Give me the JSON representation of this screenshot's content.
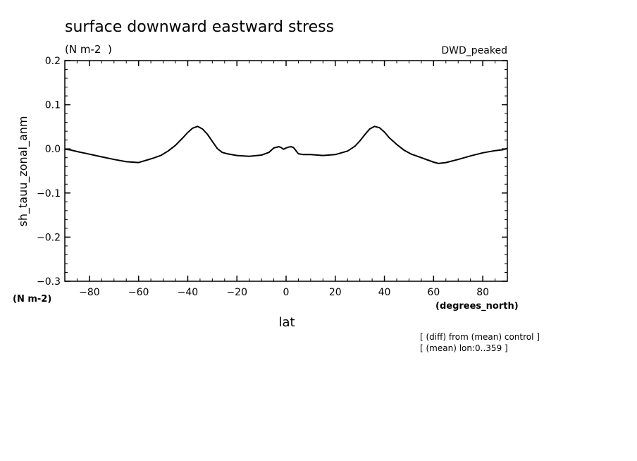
{
  "chart_data": {
    "type": "line",
    "title": "surface downward eastward stress",
    "subtitle": "(N m-2  )",
    "tag": "DWD_peaked",
    "ylabel": "sh_tauu_zonal_anm",
    "yunits": "(N m-2)",
    "xlabel": "lat",
    "xunits": "(degrees_north)",
    "notes": [
      "[ (diff) from (mean) control ]",
      "[ (mean) lon:0..359 ]"
    ],
    "xlim": [
      -90,
      90
    ],
    "ylim": [
      -0.3,
      0.2
    ],
    "xticks": [
      -80,
      -60,
      -40,
      -20,
      0,
      20,
      40,
      60,
      80
    ],
    "xtick_labels": [
      "−80",
      "−60",
      "−40",
      "−20",
      "0",
      "20",
      "40",
      "60",
      "80"
    ],
    "yticks": [
      0.2,
      0.1,
      0.0,
      -0.1,
      -0.2,
      -0.3
    ],
    "ytick_labels": [
      "0.2",
      "0.1",
      "0.0",
      "−0.1",
      "−0.2",
      "−0.3"
    ],
    "grid": false,
    "series": [
      {
        "x": [
          -90,
          -88,
          -85,
          -80,
          -75,
          -70,
          -65,
          -60,
          -57,
          -54,
          -51,
          -48,
          -45,
          -42,
          -40,
          -38,
          -36,
          -34,
          -32,
          -30,
          -28,
          -26,
          -24,
          -20,
          -15,
          -10,
          -7,
          -5,
          -3,
          -2,
          -1,
          0,
          1,
          2,
          3,
          5,
          7,
          10,
          15,
          20,
          25,
          28,
          30,
          32,
          34,
          36,
          38,
          40,
          42,
          45,
          48,
          51,
          55,
          58,
          60,
          62,
          65,
          70,
          75,
          80,
          85,
          88,
          90
        ],
        "y": [
          -0.001,
          -0.002,
          -0.006,
          -0.012,
          -0.018,
          -0.024,
          -0.029,
          -0.031,
          -0.026,
          -0.021,
          -0.015,
          -0.005,
          0.008,
          0.025,
          0.037,
          0.047,
          0.051,
          0.045,
          0.033,
          0.017,
          0.001,
          -0.008,
          -0.011,
          -0.015,
          -0.017,
          -0.014,
          -0.008,
          0.002,
          0.005,
          0.003,
          -0.001,
          0.002,
          0.004,
          0.005,
          0.003,
          -0.011,
          -0.013,
          -0.013,
          -0.015,
          -0.013,
          -0.005,
          0.006,
          0.018,
          0.032,
          0.045,
          0.051,
          0.048,
          0.038,
          0.025,
          0.01,
          -0.003,
          -0.012,
          -0.02,
          -0.026,
          -0.03,
          -0.033,
          -0.031,
          -0.024,
          -0.016,
          -0.009,
          -0.004,
          -0.002,
          0.001
        ]
      }
    ]
  }
}
